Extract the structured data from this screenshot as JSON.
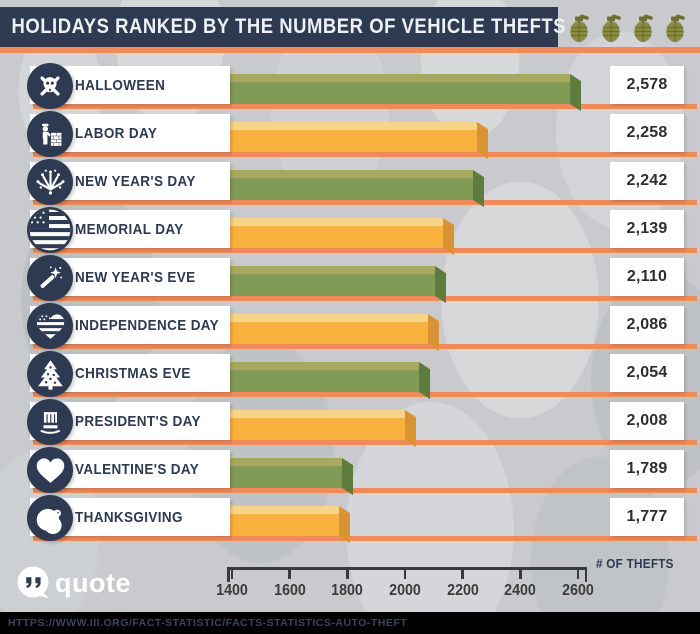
{
  "header": {
    "title": "HOLIDAYS RANKED BY THE NUMBER OF VEHICLE THEFTS",
    "grenade_icons": [
      "grenade-icon",
      "grenade-icon",
      "grenade-icon",
      "grenade-icon"
    ]
  },
  "logo": {
    "text": "quote"
  },
  "axis": {
    "label": "# OF THEFTS",
    "ticks": [
      "1400",
      "1600",
      "1800",
      "2000",
      "2200",
      "2400",
      "2600"
    ]
  },
  "footer": {
    "url": "HTTPS://WWW.III.ORG/FACT-STATISTIC/FACTS-STATISTICS-AUTO-THEFT"
  },
  "colors": {
    "navy": "#2d3a52",
    "orange_rule": "#f08a5b",
    "green_bar_face": "#7f9b55",
    "green_bar_top": "#a7a960",
    "green_bar_side": "#5e7c3d",
    "orange_bar_face": "#f8b13c",
    "orange_bar_top": "#fbd28b",
    "orange_bar_side": "#da9332",
    "background": "#c8cacd",
    "grenade_olive": "#8b8c42"
  },
  "rows": [
    {
      "label": "HALLOWEEN",
      "value": 2578,
      "value_label": "2,578",
      "color": "green",
      "icon": "skull-crossbones-icon"
    },
    {
      "label": "LABOR DAY",
      "value": 2258,
      "value_label": "2,258",
      "color": "orange",
      "icon": "construction-worker-icon"
    },
    {
      "label": "NEW YEAR'S DAY",
      "value": 2242,
      "value_label": "2,242",
      "color": "green",
      "icon": "fireworks-icon"
    },
    {
      "label": "MEMORIAL DAY",
      "value": 2139,
      "value_label": "2,139",
      "color": "orange",
      "icon": "us-flag-icon"
    },
    {
      "label": "NEW YEAR'S EVE",
      "value": 2110,
      "value_label": "2,110",
      "color": "green",
      "icon": "sparkler-wand-icon"
    },
    {
      "label": "INDEPENDENCE DAY",
      "value": 2086,
      "value_label": "2,086",
      "color": "orange",
      "icon": "flag-heart-icon"
    },
    {
      "label": "CHRISTMAS EVE",
      "value": 2054,
      "value_label": "2,054",
      "color": "green",
      "icon": "christmas-tree-icon"
    },
    {
      "label": "PRESIDENT'S DAY",
      "value": 2008,
      "value_label": "2,008",
      "color": "orange",
      "icon": "uncle-sam-hat-icon"
    },
    {
      "label": "VALENTINE'S DAY",
      "value": 1789,
      "value_label": "1,789",
      "color": "green",
      "icon": "heart-icon"
    },
    {
      "label": "THANKSGIVING",
      "value": 1777,
      "value_label": "1,777",
      "color": "orange",
      "icon": "turkey-icon"
    }
  ],
  "chart_data": {
    "type": "bar",
    "orientation": "horizontal",
    "title": "HOLIDAYS RANKED BY THE NUMBER OF VEHICLE THEFTS",
    "categories": [
      "HALLOWEEN",
      "LABOR DAY",
      "NEW YEAR'S DAY",
      "MEMORIAL DAY",
      "NEW YEAR'S EVE",
      "INDEPENDENCE DAY",
      "CHRISTMAS EVE",
      "PRESIDENT'S DAY",
      "VALENTINE'S DAY",
      "THANKSGIVING"
    ],
    "values": [
      2578,
      2258,
      2242,
      2139,
      2110,
      2086,
      2054,
      2008,
      1789,
      1777
    ],
    "value_labels": [
      "2,578",
      "2,258",
      "2,242",
      "2,139",
      "2,110",
      "2,086",
      "2,054",
      "2,008",
      "1,789",
      "1,777"
    ],
    "xlabel": "# OF THEFTS",
    "xlim": [
      1400,
      2600
    ],
    "xticks": [
      1400,
      1600,
      1800,
      2000,
      2200,
      2400,
      2600
    ],
    "grid": false,
    "legend": false,
    "bar_color_pattern": [
      "#7f9b55",
      "#f8b13c"
    ]
  }
}
